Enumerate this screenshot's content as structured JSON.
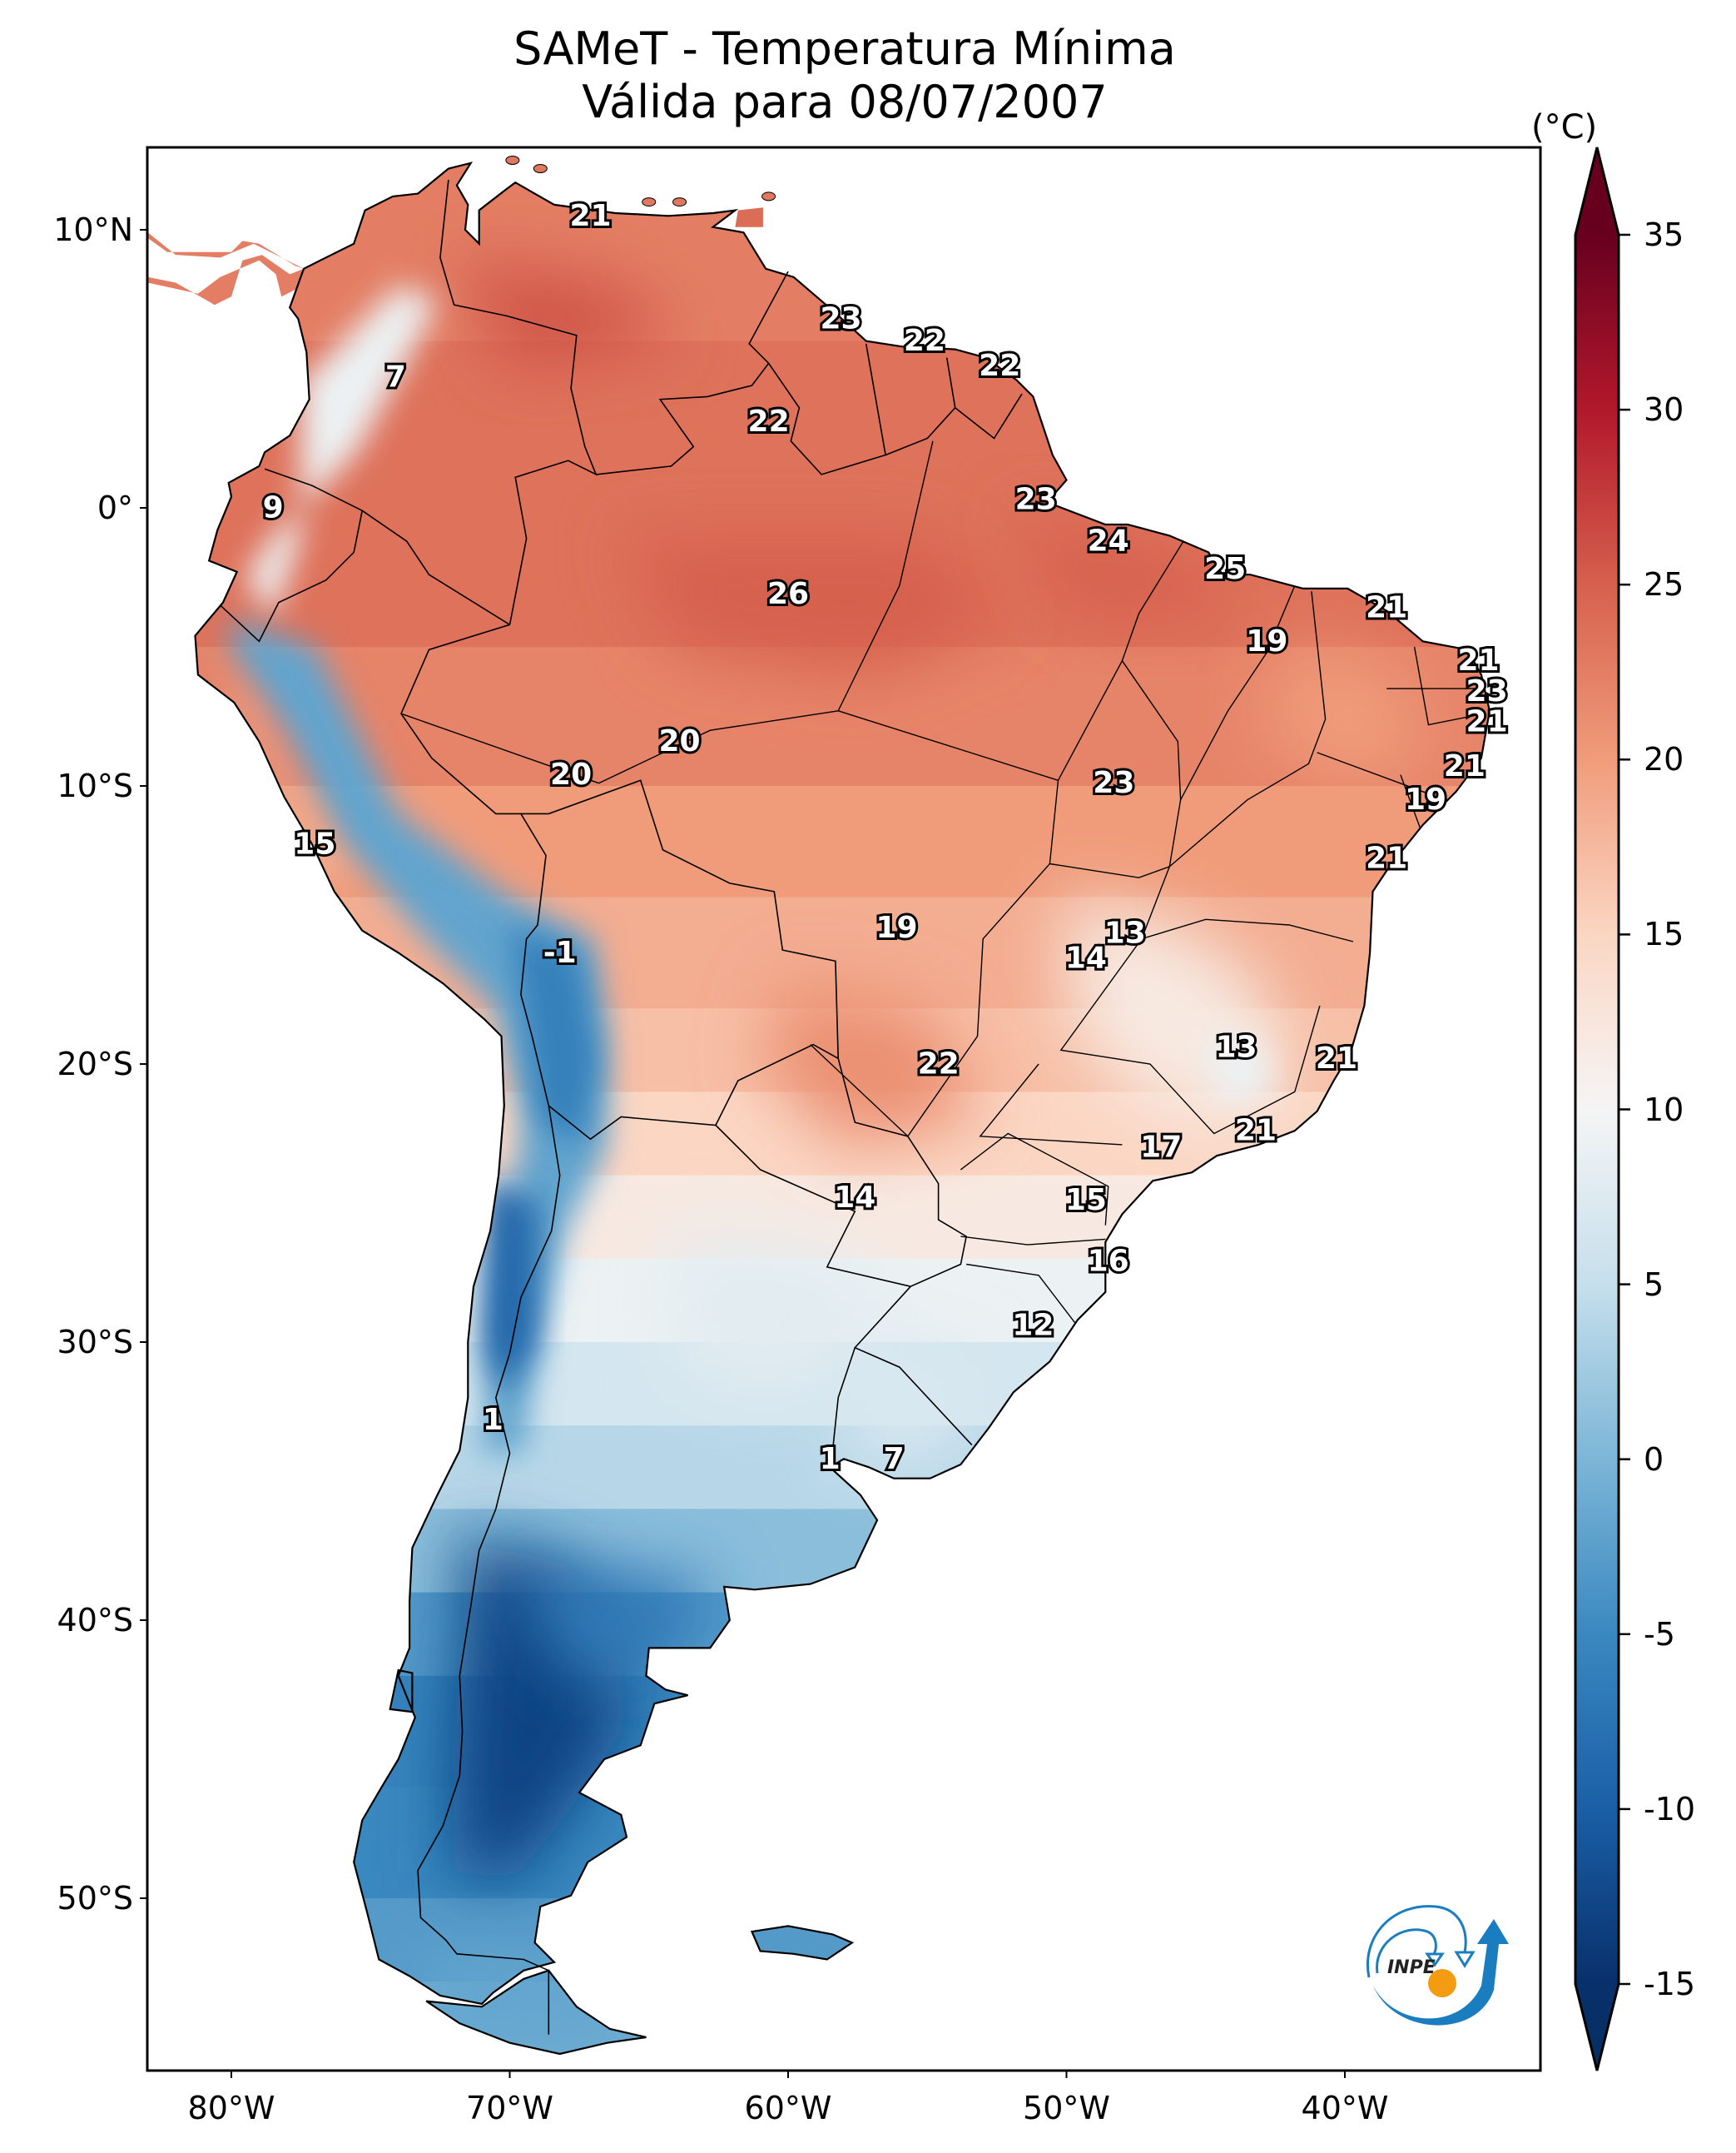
{
  "chart_data": {
    "type": "heatmap",
    "title": "SAMeT - Temperatura Mínima",
    "subtitle": "Válida para 08/07/2007",
    "variable": "Temperatura Mínima",
    "units_label": "(°C)",
    "valid_date": "08/07/2007",
    "map_extent": {
      "lon": [
        -83,
        -33
      ],
      "lat": [
        -56,
        13
      ]
    },
    "lat_ticks": [
      {
        "value": 10,
        "label": "10°N"
      },
      {
        "value": 0,
        "label": "0°"
      },
      {
        "value": -10,
        "label": "10°S"
      },
      {
        "value": -20,
        "label": "20°S"
      },
      {
        "value": -30,
        "label": "30°S"
      },
      {
        "value": -40,
        "label": "40°S"
      },
      {
        "value": -50,
        "label": "50°S"
      }
    ],
    "lon_ticks": [
      {
        "value": -80,
        "label": "80°W"
      },
      {
        "value": -70,
        "label": "70°W"
      },
      {
        "value": -60,
        "label": "60°W"
      },
      {
        "value": -50,
        "label": "50°W"
      },
      {
        "value": -40,
        "label": "40°W"
      }
    ],
    "colorbar": {
      "colormap": "RdBu_r",
      "range": [
        -15,
        35
      ],
      "extend": "both",
      "ticks": [
        35,
        30,
        25,
        20,
        15,
        10,
        5,
        0,
        -5,
        -10,
        -15
      ],
      "tick_labels": [
        "35",
        "30",
        "25",
        "20",
        "15",
        "10",
        "5",
        "0",
        "-5",
        "-10",
        "-15"
      ],
      "stops": [
        {
          "value": -17,
          "color": "#053061"
        },
        {
          "value": -15,
          "color": "#08306b"
        },
        {
          "value": -10,
          "color": "#1a5fa6"
        },
        {
          "value": -5,
          "color": "#3a88c0"
        },
        {
          "value": 0,
          "color": "#7cb6d7"
        },
        {
          "value": 5,
          "color": "#c6dfec"
        },
        {
          "value": 10,
          "color": "#f5f5f5"
        },
        {
          "value": 15,
          "color": "#fbd6c3"
        },
        {
          "value": 20,
          "color": "#f09c7b"
        },
        {
          "value": 25,
          "color": "#d6604d"
        },
        {
          "value": 30,
          "color": "#b2182b"
        },
        {
          "value": 35,
          "color": "#67001f"
        }
      ]
    },
    "station_values": [
      {
        "lon": -67.1,
        "lat": 10.5,
        "value": "21"
      },
      {
        "lon": -58.1,
        "lat": 6.8,
        "value": "23"
      },
      {
        "lon": -55.1,
        "lat": 6.0,
        "value": "22"
      },
      {
        "lon": -52.4,
        "lat": 5.1,
        "value": "22"
      },
      {
        "lon": -74.1,
        "lat": 4.7,
        "value": "7"
      },
      {
        "lon": -60.7,
        "lat": 3.1,
        "value": "22"
      },
      {
        "lon": -51.1,
        "lat": 0.3,
        "value": "23"
      },
      {
        "lon": -78.5,
        "lat": 0.0,
        "value": "9"
      },
      {
        "lon": -48.5,
        "lat": -1.2,
        "value": "24"
      },
      {
        "lon": -44.3,
        "lat": -2.2,
        "value": "25"
      },
      {
        "lon": -60.0,
        "lat": -3.1,
        "value": "26"
      },
      {
        "lon": -38.5,
        "lat": -3.6,
        "value": "21"
      },
      {
        "lon": -42.8,
        "lat": -4.8,
        "value": "19"
      },
      {
        "lon": -35.2,
        "lat": -5.5,
        "value": "21"
      },
      {
        "lon": -34.9,
        "lat": -6.6,
        "value": "23"
      },
      {
        "lon": -34.9,
        "lat": -7.7,
        "value": "21"
      },
      {
        "lon": -63.9,
        "lat": -8.4,
        "value": "20"
      },
      {
        "lon": -35.7,
        "lat": -9.3,
        "value": "21"
      },
      {
        "lon": -67.8,
        "lat": -9.6,
        "value": "20"
      },
      {
        "lon": -48.3,
        "lat": -9.9,
        "value": "23"
      },
      {
        "lon": -37.1,
        "lat": -10.5,
        "value": "19"
      },
      {
        "lon": -77.0,
        "lat": -12.1,
        "value": "15"
      },
      {
        "lon": -38.5,
        "lat": -12.6,
        "value": "21"
      },
      {
        "lon": -56.1,
        "lat": -15.1,
        "value": "19"
      },
      {
        "lon": -47.9,
        "lat": -15.3,
        "value": "13"
      },
      {
        "lon": -49.3,
        "lat": -16.2,
        "value": "14"
      },
      {
        "lon": -68.2,
        "lat": -16.0,
        "value": "-1"
      },
      {
        "lon": -43.9,
        "lat": -19.4,
        "value": "13"
      },
      {
        "lon": -40.3,
        "lat": -19.8,
        "value": "21"
      },
      {
        "lon": -54.6,
        "lat": -20.0,
        "value": "22"
      },
      {
        "lon": -43.2,
        "lat": -22.4,
        "value": "21"
      },
      {
        "lon": -46.6,
        "lat": -23.0,
        "value": "17"
      },
      {
        "lon": -57.6,
        "lat": -24.8,
        "value": "14"
      },
      {
        "lon": -49.3,
        "lat": -24.9,
        "value": "15"
      },
      {
        "lon": -48.5,
        "lat": -27.1,
        "value": "16"
      },
      {
        "lon": -51.2,
        "lat": -29.4,
        "value": "12"
      },
      {
        "lon": -70.6,
        "lat": -32.8,
        "value": "1"
      },
      {
        "lon": -58.5,
        "lat": -34.2,
        "value": "1"
      },
      {
        "lon": -56.2,
        "lat": -34.2,
        "value": "7"
      }
    ]
  },
  "logo": {
    "text": "INPE",
    "name": "INPE"
  }
}
